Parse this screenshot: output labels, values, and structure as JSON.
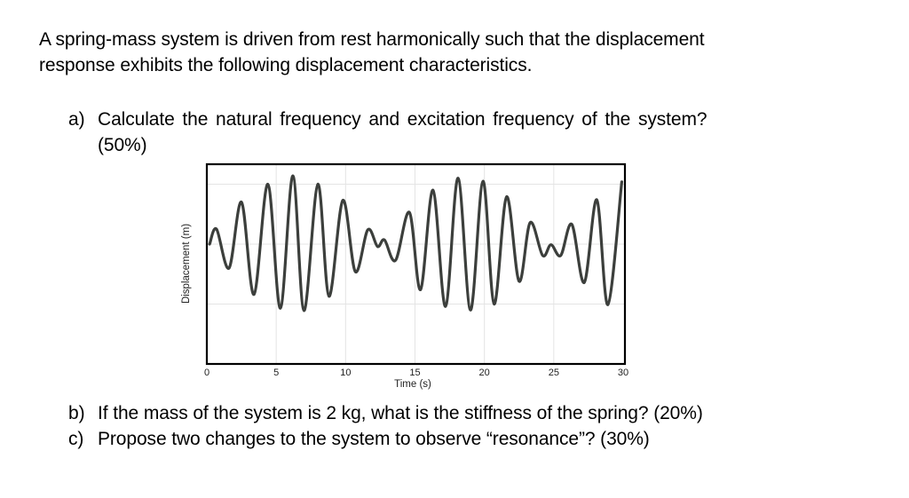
{
  "problem": {
    "intro_line1": "A spring-mass system is driven from rest harmonically such that the displacement",
    "intro_line2": "response exhibits the following displacement characteristics.",
    "questions": [
      {
        "label": "a)",
        "text_line1": "Calculate the natural frequency and excitation frequency of the system?",
        "text_line2": "(50%)"
      },
      {
        "label": "b)",
        "text": "If the mass of the system is 2 kg, what is the stiffness of the spring? (20%)"
      },
      {
        "label": "c)",
        "text": "Propose two changes to the system to observe “resonance”? (30%)"
      }
    ]
  },
  "chart_data": {
    "type": "line",
    "title": "",
    "xlabel": "Time (s)",
    "ylabel": "Displacement (m)",
    "xlim": [
      0,
      30
    ],
    "ylim": [
      -2,
      1.15
    ],
    "xticks": [
      0,
      5,
      10,
      15,
      20,
      25,
      30
    ],
    "yticks_labels_visible": false,
    "grid": true,
    "line_color": "#3c3f3c",
    "series": [
      {
        "name": "displacement",
        "x": [
          0.2,
          0.7,
          1.6,
          2.5,
          3.4,
          4.4,
          5.3,
          6.2,
          7.0,
          8.0,
          8.8,
          9.8,
          10.7,
          11.6,
          12.3,
          12.8,
          13.6,
          14.6,
          15.4,
          16.3,
          17.2,
          18.1,
          19.0,
          19.9,
          20.7,
          21.6,
          22.5,
          23.3,
          24.2,
          24.8,
          25.5,
          26.3,
          27.2,
          28.1,
          28.9,
          29.9
        ],
        "y": [
          0.0,
          0.25,
          -0.4,
          0.7,
          -0.84,
          1.0,
          -1.07,
          1.14,
          -1.11,
          1.0,
          -0.87,
          0.73,
          -0.46,
          0.24,
          -0.04,
          0.07,
          -0.27,
          0.53,
          -0.76,
          0.9,
          -1.04,
          1.1,
          -1.1,
          1.05,
          -1.0,
          0.79,
          -0.62,
          0.36,
          -0.19,
          -0.01,
          -0.19,
          0.33,
          -0.64,
          0.74,
          -1.01,
          1.04
        ]
      }
    ]
  }
}
